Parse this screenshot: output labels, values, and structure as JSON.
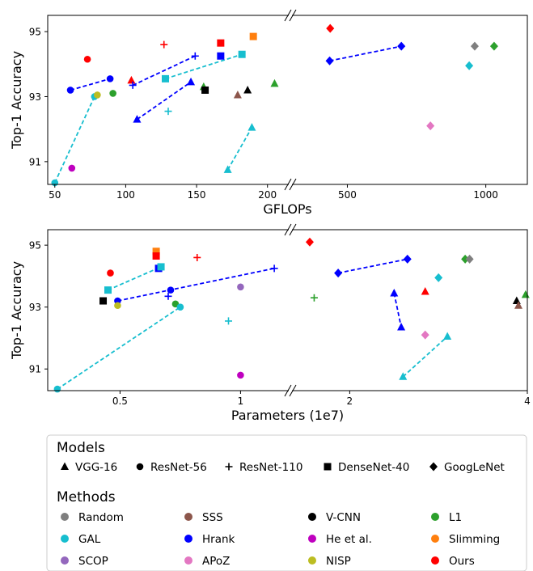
{
  "colors": {
    "Random": "#7f7f7f",
    "SSS": "#8c564b",
    "V-CNN": "#000000",
    "L1": "#2ca02c",
    "GAL": "#17becf",
    "Hrank": "#0000ff",
    "He et al.": "#bf00bf",
    "Slimming": "#ff7f0e",
    "SCOP": "#9467bd",
    "APoZ": "#e377c2",
    "NISP": "#bcbd22",
    "Ours": "#ff0000",
    "ResNet-110": "#ff0000"
  },
  "legend": {
    "models_title": "Models",
    "models": [
      {
        "label": "VGG-16",
        "marker": "triangle"
      },
      {
        "label": "ResNet-56",
        "marker": "circle"
      },
      {
        "label": "ResNet-110",
        "marker": "plus"
      },
      {
        "label": "DenseNet-40",
        "marker": "square"
      },
      {
        "label": "GoogLeNet",
        "marker": "diamond"
      }
    ],
    "methods_title": "Methods",
    "methods": [
      "Random",
      "SSS",
      "V-CNN",
      "L1",
      "GAL",
      "Hrank",
      "He et al.",
      "Slimming",
      "SCOP",
      "APoZ",
      "NISP",
      "Ours"
    ]
  },
  "chart_data": [
    {
      "type": "scatter",
      "xlabel": "GFLOPs",
      "ylabel": "Top-1 Accuracy",
      "ylim": [
        90.3,
        95.5
      ],
      "y_ticks": [
        91,
        93,
        95
      ],
      "x_segments": [
        {
          "range": [
            45,
            215
          ],
          "ticks": [
            50,
            100,
            150,
            200
          ]
        },
        {
          "range": [
            300,
            1150
          ],
          "ticks": [
            500,
            1000
          ]
        }
      ],
      "points": [
        {
          "x": 50,
          "y": 90.35,
          "marker": "circle",
          "method": "GAL"
        },
        {
          "x": 61,
          "y": 93.2,
          "marker": "circle",
          "method": "Hrank"
        },
        {
          "x": 62,
          "y": 90.8,
          "marker": "circle",
          "method": "He et al."
        },
        {
          "x": 73,
          "y": 94.15,
          "marker": "circle",
          "method": "Ours"
        },
        {
          "x": 78,
          "y": 93.0,
          "marker": "circle",
          "method": "GAL"
        },
        {
          "x": 80,
          "y": 93.05,
          "marker": "circle",
          "method": "NISP"
        },
        {
          "x": 89,
          "y": 93.55,
          "marker": "circle",
          "method": "Hrank"
        },
        {
          "x": 91,
          "y": 93.1,
          "marker": "circle",
          "method": "L1"
        },
        {
          "x": 104,
          "y": 93.5,
          "marker": "triangle",
          "method": "Ours"
        },
        {
          "x": 108,
          "y": 92.3,
          "marker": "triangle",
          "method": "Hrank"
        },
        {
          "x": 146,
          "y": 93.45,
          "marker": "triangle",
          "method": "Hrank"
        },
        {
          "x": 155,
          "y": 93.3,
          "marker": "triangle",
          "method": "L1"
        },
        {
          "x": 179,
          "y": 93.05,
          "marker": "triangle",
          "method": "SSS"
        },
        {
          "x": 186,
          "y": 93.2,
          "marker": "triangle",
          "method": "V-CNN"
        },
        {
          "x": 189,
          "y": 92.05,
          "marker": "triangle",
          "method": "GAL"
        },
        {
          "x": 172,
          "y": 90.75,
          "marker": "triangle",
          "method": "GAL"
        },
        {
          "x": 205,
          "y": 93.4,
          "marker": "triangle",
          "method": "L1"
        },
        {
          "x": 105,
          "y": 93.35,
          "marker": "plus",
          "method": "Hrank"
        },
        {
          "x": 127,
          "y": 94.6,
          "marker": "plus",
          "method": "Ours"
        },
        {
          "x": 130,
          "y": 92.55,
          "marker": "plus",
          "method": "GAL"
        },
        {
          "x": 149,
          "y": 94.25,
          "marker": "plus",
          "method": "Hrank"
        },
        {
          "x": 128,
          "y": 93.55,
          "marker": "square",
          "method": "GAL"
        },
        {
          "x": 156,
          "y": 93.2,
          "marker": "square",
          "method": "V-CNN"
        },
        {
          "x": 167,
          "y": 94.65,
          "marker": "square",
          "method": "Ours"
        },
        {
          "x": 167,
          "y": 94.25,
          "marker": "square",
          "method": "Hrank"
        },
        {
          "x": 182,
          "y": 94.3,
          "marker": "square",
          "method": "GAL"
        },
        {
          "x": 190,
          "y": 94.85,
          "marker": "square",
          "method": "Slimming"
        },
        {
          "x": 438,
          "y": 95.1,
          "marker": "diamond",
          "method": "Ours"
        },
        {
          "x": 436,
          "y": 94.1,
          "marker": "diamond",
          "method": "Hrank"
        },
        {
          "x": 695,
          "y": 94.55,
          "marker": "diamond",
          "method": "Hrank"
        },
        {
          "x": 800,
          "y": 92.1,
          "marker": "diamond",
          "method": "APoZ"
        },
        {
          "x": 940,
          "y": 93.95,
          "marker": "diamond",
          "method": "GAL"
        },
        {
          "x": 960,
          "y": 94.55,
          "marker": "diamond",
          "method": "Random"
        },
        {
          "x": 1030,
          "y": 94.55,
          "marker": "diamond",
          "method": "L1"
        }
      ],
      "links": [
        {
          "from": [
            50,
            90.35
          ],
          "to": [
            78,
            93.0
          ],
          "method": "GAL"
        },
        {
          "from": [
            61,
            93.2
          ],
          "to": [
            89,
            93.55
          ],
          "method": "Hrank"
        },
        {
          "from": [
            108,
            92.3
          ],
          "to": [
            146,
            93.45
          ],
          "method": "Hrank"
        },
        {
          "from": [
            172,
            90.75
          ],
          "to": [
            189,
            92.05
          ],
          "method": "GAL"
        },
        {
          "from": [
            105,
            93.35
          ],
          "to": [
            149,
            94.25
          ],
          "method": "Hrank"
        },
        {
          "from": [
            128,
            93.55
          ],
          "to": [
            182,
            94.3
          ],
          "method": "GAL"
        },
        {
          "from": [
            436,
            94.1
          ],
          "to": [
            695,
            94.55
          ],
          "method": "Hrank"
        }
      ]
    },
    {
      "type": "scatter",
      "xlabel": "Parameters (1e7)",
      "ylabel": "Top-1 Accuracy",
      "ylim": [
        90.3,
        95.5
      ],
      "y_ticks": [
        91,
        93,
        95
      ],
      "x_segments": [
        {
          "range": [
            0.2,
            1.2
          ],
          "ticks": [
            0.5,
            1
          ]
        },
        {
          "range": [
            1.35,
            4.0
          ],
          "ticks": [
            2,
            4
          ]
        }
      ],
      "points": [
        {
          "x": 0.24,
          "y": 90.35,
          "marker": "circle",
          "method": "GAL"
        },
        {
          "x": 0.46,
          "y": 94.1,
          "marker": "circle",
          "method": "Ours"
        },
        {
          "x": 0.49,
          "y": 93.2,
          "marker": "circle",
          "method": "Hrank"
        },
        {
          "x": 0.49,
          "y": 93.05,
          "marker": "circle",
          "method": "NISP"
        },
        {
          "x": 0.71,
          "y": 93.55,
          "marker": "circle",
          "method": "Hrank"
        },
        {
          "x": 0.73,
          "y": 93.1,
          "marker": "circle",
          "method": "L1"
        },
        {
          "x": 0.75,
          "y": 93.0,
          "marker": "circle",
          "method": "GAL"
        },
        {
          "x": 1.0,
          "y": 93.65,
          "marker": "circle",
          "method": "SCOP"
        },
        {
          "x": 1.0,
          "y": 90.8,
          "marker": "circle",
          "method": "He et al."
        },
        {
          "x": 0.43,
          "y": 93.2,
          "marker": "square",
          "method": "V-CNN"
        },
        {
          "x": 0.45,
          "y": 93.55,
          "marker": "square",
          "method": "GAL"
        },
        {
          "x": 0.65,
          "y": 94.8,
          "marker": "square",
          "method": "Slimming"
        },
        {
          "x": 0.65,
          "y": 94.65,
          "marker": "square",
          "method": "Ours"
        },
        {
          "x": 0.66,
          "y": 94.25,
          "marker": "square",
          "method": "Hrank"
        },
        {
          "x": 0.67,
          "y": 94.3,
          "marker": "square",
          "method": "GAL"
        },
        {
          "x": 0.7,
          "y": 93.35,
          "marker": "plus",
          "method": "Hrank"
        },
        {
          "x": 0.82,
          "y": 94.6,
          "marker": "plus",
          "method": "Ours"
        },
        {
          "x": 0.95,
          "y": 92.55,
          "marker": "plus",
          "method": "GAL"
        },
        {
          "x": 1.14,
          "y": 94.25,
          "marker": "plus",
          "method": "Hrank"
        },
        {
          "x": 1.6,
          "y": 93.3,
          "marker": "plus",
          "method": "L1"
        },
        {
          "x": 1.55,
          "y": 95.1,
          "marker": "diamond",
          "method": "Ours"
        },
        {
          "x": 1.87,
          "y": 94.1,
          "marker": "diamond",
          "method": "Hrank"
        },
        {
          "x": 2.65,
          "y": 94.55,
          "marker": "diamond",
          "method": "Hrank"
        },
        {
          "x": 2.85,
          "y": 92.1,
          "marker": "diamond",
          "method": "APoZ"
        },
        {
          "x": 3.0,
          "y": 93.95,
          "marker": "diamond",
          "method": "GAL"
        },
        {
          "x": 3.3,
          "y": 94.55,
          "marker": "diamond",
          "method": "L1"
        },
        {
          "x": 3.35,
          "y": 94.55,
          "marker": "diamond",
          "method": "Random"
        },
        {
          "x": 2.5,
          "y": 93.45,
          "marker": "triangle",
          "method": "Hrank"
        },
        {
          "x": 2.58,
          "y": 92.35,
          "marker": "triangle",
          "method": "Hrank"
        },
        {
          "x": 2.6,
          "y": 90.75,
          "marker": "triangle",
          "method": "GAL"
        },
        {
          "x": 2.85,
          "y": 93.5,
          "marker": "triangle",
          "method": "Ours"
        },
        {
          "x": 3.1,
          "y": 92.05,
          "marker": "triangle",
          "method": "GAL"
        },
        {
          "x": 3.88,
          "y": 93.2,
          "marker": "triangle",
          "method": "V-CNN"
        },
        {
          "x": 3.9,
          "y": 93.05,
          "marker": "triangle",
          "method": "SSS"
        },
        {
          "x": 3.98,
          "y": 93.4,
          "marker": "triangle",
          "method": "L1"
        }
      ],
      "links": [
        {
          "from": [
            0.24,
            90.35
          ],
          "to": [
            0.75,
            93.0
          ],
          "method": "GAL"
        },
        {
          "from": [
            0.49,
            93.2
          ],
          "to": [
            1.14,
            94.25
          ],
          "method": "Hrank"
        },
        {
          "from": [
            0.45,
            93.55
          ],
          "to": [
            0.67,
            94.3
          ],
          "method": "GAL"
        },
        {
          "from": [
            1.87,
            94.1
          ],
          "to": [
            2.65,
            94.55
          ],
          "method": "Hrank"
        },
        {
          "from": [
            2.5,
            93.45
          ],
          "to": [
            2.58,
            92.35
          ],
          "method": "Hrank"
        },
        {
          "from": [
            2.6,
            90.75
          ],
          "to": [
            3.1,
            92.05
          ],
          "method": "GAL"
        }
      ]
    }
  ]
}
